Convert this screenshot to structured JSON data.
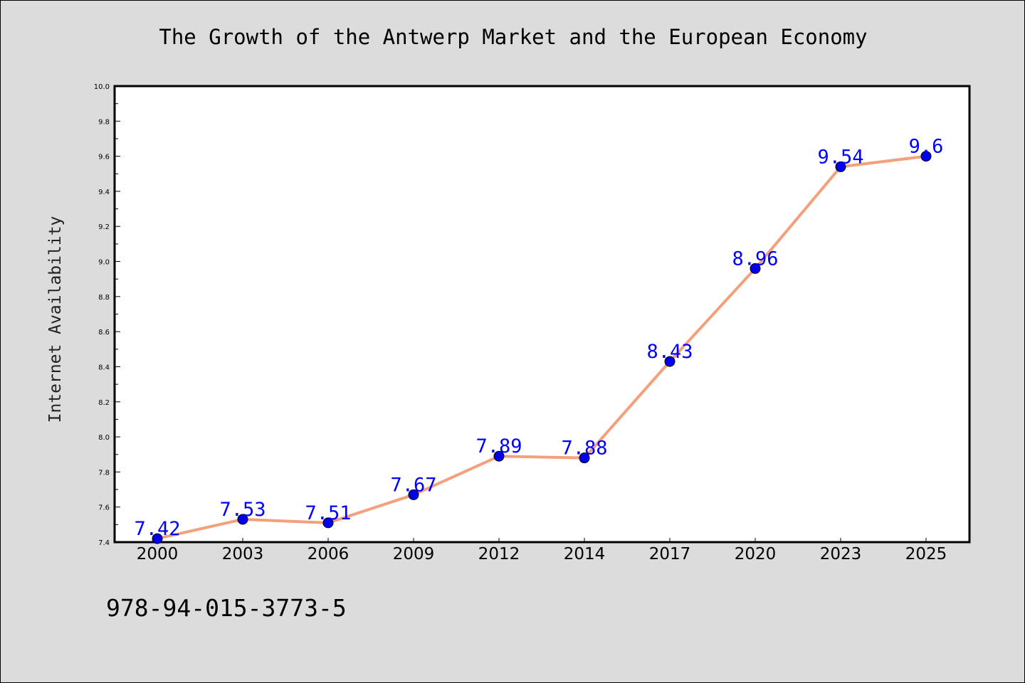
{
  "chart_data": {
    "type": "line",
    "title": "The Growth of the Antwerp Market and the European Economy",
    "xlabel": "",
    "ylabel": "Internet Availability",
    "categories": [
      "2000",
      "2003",
      "2006",
      "2009",
      "2012",
      "2014",
      "2017",
      "2020",
      "2023",
      "2025"
    ],
    "series": [
      {
        "values": [
          7.42,
          7.53,
          7.51,
          7.67,
          7.89,
          7.88,
          8.43,
          8.96,
          9.54,
          9.6
        ],
        "labels": [
          "7.42",
          "7.53",
          "7.51",
          "7.67",
          "7.89",
          "7.88",
          "8.43",
          "8.96",
          "9.54",
          "9.6"
        ],
        "line_color": "#f4a07c",
        "marker_color": "#0000ee",
        "label_color": "#0000ff"
      }
    ],
    "ylim": [
      7.4,
      10.0
    ],
    "yticks": [
      "7.4",
      "7.6",
      "7.8",
      "8.0",
      "8.2",
      "8.4",
      "8.6",
      "8.8",
      "9.0",
      "9.2",
      "9.4",
      "9.6",
      "9.8",
      "10.0"
    ],
    "grid": false,
    "legend": "none"
  },
  "footnote": "978-94-015-3773-5",
  "colors": {
    "background": "#dcdcdc",
    "plot_background": "#ffffff"
  }
}
